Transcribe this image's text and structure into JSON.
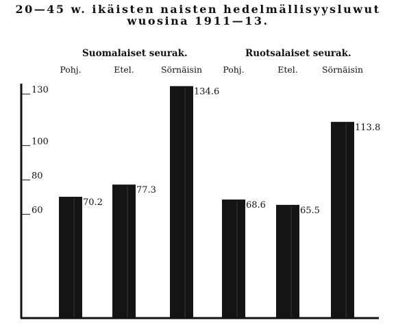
{
  "title_line1": "20—45 w. ikäisten naisten hedelmällisyysluwut",
  "title_line2": "wuosina 1911—13.",
  "chart_data": {
    "type": "bar",
    "title": "20—45 w. ikäisten naisten hedelmällisyysluwut wuosina 1911—13.",
    "groups": [
      {
        "label": "Suomalaiset seurak.",
        "categories": [
          "Pohj.",
          "Etel.",
          "Sörnäisin"
        ]
      },
      {
        "label": "Ruotsalaiset seurak.",
        "categories": [
          "Pohj.",
          "Etel.",
          "Sörnäisin"
        ]
      }
    ],
    "categories": [
      "Pohj.",
      "Etel.",
      "Sörnäisin",
      "Pohj.",
      "Etel.",
      "Sörnäisin"
    ],
    "values": [
      70.2,
      77.3,
      134.6,
      68.6,
      65.5,
      113.8
    ],
    "value_labels": [
      "70.2",
      "77.3",
      "134.6",
      "68.6",
      "65.5",
      "113.8"
    ],
    "yticks": [
      "60",
      "80",
      "100",
      "130"
    ],
    "xlabel": "",
    "ylabel": "",
    "grid": false,
    "bar_color": "#141414"
  }
}
